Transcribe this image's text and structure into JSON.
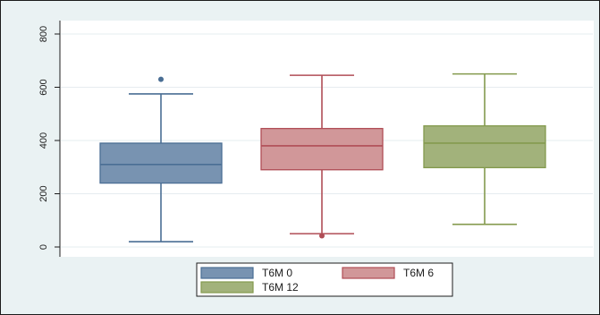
{
  "chart_data": {
    "type": "box",
    "title": "",
    "xlabel": "",
    "ylabel": "",
    "ylim": [
      0,
      800
    ],
    "yticks": [
      "0",
      "200",
      "400",
      "600",
      "800"
    ],
    "grid": true,
    "legend_position": "bottom",
    "series": [
      {
        "name": "T6M 0",
        "color": "#7893b1",
        "stroke": "#4a6e94",
        "min": 20,
        "q1": 240,
        "median": 310,
        "q3": 390,
        "max": 575,
        "outliers": [
          630
        ]
      },
      {
        "name": "T6M 6",
        "color": "#d19799",
        "stroke": "#b04d56",
        "min": 50,
        "q1": 290,
        "median": 380,
        "q3": 445,
        "max": 645,
        "outliers": [
          42
        ]
      },
      {
        "name": "T6M 12",
        "color": "#a2b27b",
        "stroke": "#849a4e",
        "min": 85,
        "q1": 298,
        "median": 390,
        "q3": 455,
        "max": 650,
        "outliers": []
      }
    ]
  }
}
